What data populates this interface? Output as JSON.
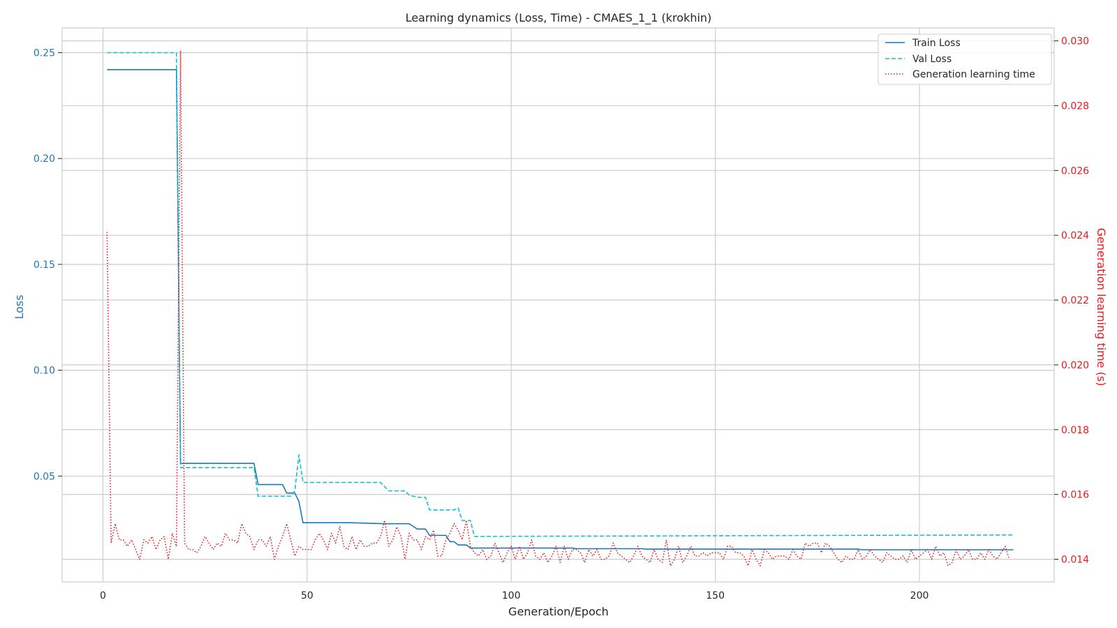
{
  "chart_data": {
    "type": "line",
    "title": "Learning dynamics (Loss, Time) - CMAES_1_1 (krokhin)",
    "xlabel": "Generation/Epoch",
    "ylabel_left": "Loss",
    "ylabel_right": "Generation learning time (s)",
    "xlim": [
      -10,
      233
    ],
    "ylim_left": [
      0.0,
      0.2617
    ],
    "ylim_right": [
      0.0133,
      0.0304
    ],
    "x_ticks": [
      0,
      50,
      100,
      150,
      200
    ],
    "x_tick_labels": [
      "0",
      "50",
      "100",
      "150",
      "200"
    ],
    "y_left_ticks": [
      0.05,
      0.1,
      0.15,
      0.2,
      0.25
    ],
    "y_left_tick_labels": [
      "0.05",
      "0.10",
      "0.15",
      "0.20",
      "0.25"
    ],
    "y_right_ticks": [
      0.014,
      0.016,
      0.018,
      0.02,
      0.022,
      0.024,
      0.026,
      0.028,
      0.03
    ],
    "y_right_tick_labels": [
      "0.014",
      "0.016",
      "0.018",
      "0.020",
      "0.022",
      "0.024",
      "0.026",
      "0.028",
      "0.030"
    ],
    "grid": true,
    "legend_position": "top-right",
    "colors": {
      "train": "#1f77b4",
      "val": "#17becf",
      "time": "#e31a1c",
      "left_axis": "#1f77b4",
      "right_axis": "#e31a1c",
      "grid": "#cccccc",
      "frame": "#cccccc"
    },
    "series": [
      {
        "name": "Train Loss",
        "axis": "left",
        "style": "solid",
        "steps": [
          [
            1,
            0.242
          ],
          [
            18,
            0.242
          ],
          [
            19,
            0.056
          ],
          [
            37,
            0.056
          ],
          [
            38,
            0.046
          ],
          [
            44,
            0.046
          ],
          [
            45,
            0.042
          ],
          [
            47,
            0.042
          ],
          [
            48,
            0.038
          ],
          [
            49,
            0.028
          ],
          [
            60,
            0.028
          ],
          [
            69,
            0.0275
          ],
          [
            75,
            0.0275
          ],
          [
            77,
            0.025
          ],
          [
            79,
            0.025
          ],
          [
            80,
            0.022
          ],
          [
            84,
            0.022
          ],
          [
            85,
            0.019
          ],
          [
            86,
            0.019
          ],
          [
            87,
            0.0175
          ],
          [
            89,
            0.0175
          ],
          [
            90,
            0.016
          ],
          [
            115,
            0.016
          ],
          [
            116,
            0.0157
          ],
          [
            132,
            0.0157
          ],
          [
            133,
            0.0155
          ],
          [
            185,
            0.0155
          ],
          [
            186,
            0.0152
          ],
          [
            223,
            0.0152
          ]
        ]
      },
      {
        "name": "Val Loss",
        "axis": "left",
        "style": "dashed",
        "steps": [
          [
            1,
            0.25
          ],
          [
            18,
            0.25
          ],
          [
            19,
            0.054
          ],
          [
            37,
            0.054
          ],
          [
            38,
            0.0405
          ],
          [
            46,
            0.0405
          ],
          [
            47,
            0.043
          ],
          [
            48,
            0.06
          ],
          [
            49,
            0.047
          ],
          [
            68,
            0.047
          ],
          [
            70,
            0.043
          ],
          [
            74,
            0.043
          ],
          [
            75,
            0.041
          ],
          [
            77,
            0.04
          ],
          [
            79,
            0.04
          ],
          [
            80,
            0.034
          ],
          [
            85,
            0.034
          ],
          [
            86,
            0.034
          ],
          [
            87,
            0.035
          ],
          [
            88,
            0.029
          ],
          [
            90,
            0.029
          ],
          [
            91,
            0.0215
          ],
          [
            223,
            0.0222
          ]
        ]
      },
      {
        "name": "Generation learning time",
        "axis": "right",
        "style": "dotted",
        "x_start": 1,
        "values": [
          0.0241,
          0.0145,
          0.0151,
          0.0146,
          0.0146,
          0.0144,
          0.0146,
          0.0143,
          0.014,
          0.0146,
          0.0145,
          0.0147,
          0.0143,
          0.0146,
          0.0147,
          0.014,
          0.0148,
          0.0144,
          0.0297,
          0.0145,
          0.0143,
          0.0143,
          0.0142,
          0.0144,
          0.0147,
          0.0145,
          0.0143,
          0.0145,
          0.0144,
          0.0148,
          0.0146,
          0.0146,
          0.0145,
          0.0151,
          0.0148,
          0.0147,
          0.0143,
          0.0146,
          0.0146,
          0.0144,
          0.0147,
          0.014,
          0.0144,
          0.0147,
          0.0151,
          0.0146,
          0.0141,
          0.0144,
          0.0143,
          0.0143,
          0.0143,
          0.0146,
          0.0148,
          0.0146,
          0.0143,
          0.0148,
          0.0145,
          0.015,
          0.0144,
          0.0143,
          0.0147,
          0.0143,
          0.0146,
          0.0144,
          0.0144,
          0.0145,
          0.0145,
          0.0147,
          0.0152,
          0.0144,
          0.0146,
          0.015,
          0.0147,
          0.014,
          0.0148,
          0.0146,
          0.0146,
          0.0143,
          0.0147,
          0.0146,
          0.0149,
          0.0141,
          0.0141,
          0.0146,
          0.0148,
          0.0151,
          0.0149,
          0.0146,
          0.0152,
          0.0144,
          0.0142,
          0.0141,
          0.0143,
          0.014,
          0.0141,
          0.0145,
          0.0142,
          0.0139,
          0.0142,
          0.0144,
          0.014,
          0.0144,
          0.014,
          0.0142,
          0.0146,
          0.0141,
          0.014,
          0.0142,
          0.0139,
          0.0141,
          0.0144,
          0.0139,
          0.0144,
          0.014,
          0.0143,
          0.0143,
          0.0142,
          0.0139,
          0.0143,
          0.0141,
          0.0143,
          0.014,
          0.014,
          0.0141,
          0.0145,
          0.0142,
          0.0141,
          0.014,
          0.0139,
          0.0141,
          0.0144,
          0.0141,
          0.014,
          0.0139,
          0.0143,
          0.014,
          0.0139,
          0.0146,
          0.0138,
          0.014,
          0.0144,
          0.0139,
          0.0141,
          0.0144,
          0.0141,
          0.0141,
          0.0142,
          0.0141,
          0.0142,
          0.0142,
          0.0142,
          0.014,
          0.0144,
          0.0144,
          0.0142,
          0.0142,
          0.0141,
          0.0138,
          0.0143,
          0.014,
          0.0138,
          0.0143,
          0.0142,
          0.014,
          0.0141,
          0.0141,
          0.0141,
          0.014,
          0.0143,
          0.0141,
          0.014,
          0.0145,
          0.0144,
          0.0145,
          0.0145,
          0.0142,
          0.0145,
          0.0144,
          0.0142,
          0.014,
          0.0139,
          0.0141,
          0.014,
          0.014,
          0.0143,
          0.014,
          0.0141,
          0.0143,
          0.0141,
          0.014,
          0.0139,
          0.0142,
          0.0141,
          0.014,
          0.014,
          0.0141,
          0.0139,
          0.0143,
          0.014,
          0.0141,
          0.0142,
          0.0143,
          0.014,
          0.0144,
          0.0141,
          0.0142,
          0.0138,
          0.0139,
          0.0143,
          0.014,
          0.0141,
          0.0143,
          0.014,
          0.014,
          0.0142,
          0.014,
          0.0143,
          0.0141,
          0.014,
          0.0142,
          0.0144,
          0.014
        ]
      }
    ]
  }
}
